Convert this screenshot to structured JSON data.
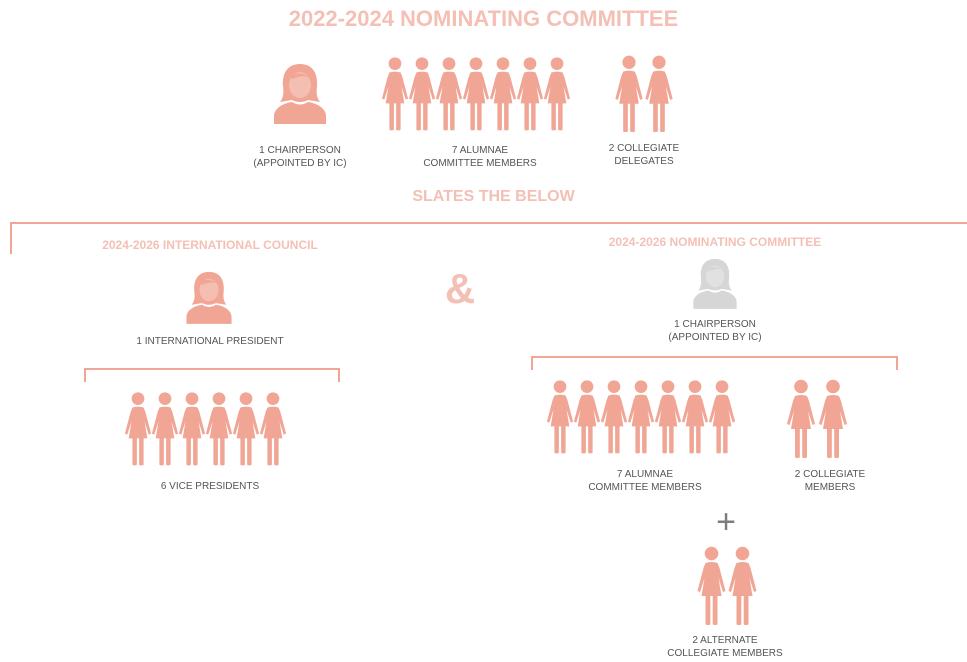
{
  "colors": {
    "figure": "#f0a595",
    "figure_muted": "#d6d6d6",
    "heading": "#f4c0b5",
    "text": "#555555"
  },
  "top": {
    "title": "2022-2024 NOMINATING COMMITTEE",
    "chairperson": {
      "line1": "1 CHAIRPERSON",
      "line2": "(APPOINTED BY IC)",
      "icon": "woman-bust-icon"
    },
    "alumnae": {
      "count": 7,
      "line1": "7 ALUMNAE",
      "line2": "COMMITTEE MEMBERS",
      "icon": "woman-figure-icon"
    },
    "collegiate": {
      "count": 2,
      "line1": "2 COLLEGIATE",
      "line2": "DELEGATES",
      "icon": "woman-figure-icon"
    }
  },
  "slates": {
    "label": "SLATES THE BELOW"
  },
  "ampersand": "&",
  "council": {
    "title": "2024-2026 INTERNATIONAL COUNCIL",
    "president": {
      "line1": "1 INTERNATIONAL PRESIDENT",
      "icon": "woman-bust-icon"
    },
    "vps": {
      "count": 6,
      "line1": "6 VICE PRESIDENTS",
      "icon": "woman-figure-icon"
    }
  },
  "next_committee": {
    "title": "2024-2026 NOMINATING COMMITTEE",
    "chairperson": {
      "line1": "1 CHAIRPERSON",
      "line2": "(APPOINTED BY IC)",
      "icon": "woman-bust-icon"
    },
    "alumnae": {
      "count": 7,
      "line1": "7 ALUMNAE",
      "line2": "COMMITTEE MEMBERS",
      "icon": "woman-figure-icon"
    },
    "collegiate": {
      "count": 2,
      "line1": "2 COLLEGIATE",
      "line2": "MEMBERS",
      "icon": "woman-figure-icon"
    },
    "plus": "+",
    "alternates": {
      "count": 2,
      "line1": "2 ALTERNATE",
      "line2": "COLLEGIATE MEMBERS",
      "icon": "woman-figure-icon"
    }
  }
}
